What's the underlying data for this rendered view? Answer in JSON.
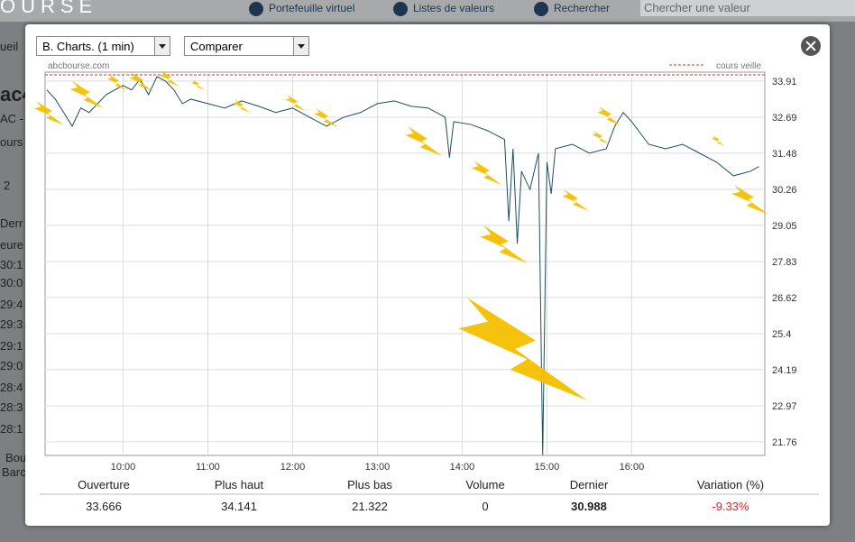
{
  "background": {
    "logo": "OURSE",
    "nav": [
      "Portefeuille virtuel",
      "Listes de valeurs",
      "Rechercher"
    ],
    "search_placeholder": "Chercher une valeur",
    "left_fragments": [
      "ueil",
      "ac4",
      "AC -",
      "ours",
      "2",
      "Derr",
      "eure",
      "30:1",
      "30:0",
      "29:4",
      "29:3",
      "29:1",
      "29:0",
      "28:4",
      "28:3",
      "28:1",
      "Bou",
      "Barc"
    ]
  },
  "modal": {
    "chart_type_select": "B. Charts. (1 min)",
    "compare_select": "Comparer"
  },
  "chart_data": {
    "type": "line",
    "source": "abcbourse.com",
    "reference": {
      "name": "cours veille",
      "value": 34.12,
      "color": "#d03030"
    },
    "xlim": [
      9.08,
      17.57
    ],
    "xticks": [
      {
        "value": 10,
        "label": "10:00"
      },
      {
        "value": 11,
        "label": "11:00"
      },
      {
        "value": 12,
        "label": "12:00"
      },
      {
        "value": 13,
        "label": "13:00"
      },
      {
        "value": 14,
        "label": "14:00"
      },
      {
        "value": 15,
        "label": "15:00"
      },
      {
        "value": 16,
        "label": "16:00"
      }
    ],
    "ylim": [
      21.3,
      34.21
    ],
    "yticks": [
      33.91,
      32.69,
      31.48,
      30.26,
      29.05,
      27.83,
      26.62,
      25.4,
      24.19,
      22.97,
      21.76
    ],
    "grid": true,
    "x": [
      9.1,
      9.2,
      9.3,
      9.4,
      9.5,
      9.6,
      9.7,
      9.8,
      9.9,
      10.0,
      10.1,
      10.2,
      10.3,
      10.4,
      10.5,
      10.6,
      10.7,
      10.8,
      11.0,
      11.2,
      11.4,
      11.6,
      11.8,
      12.0,
      12.2,
      12.4,
      12.6,
      12.8,
      13.0,
      13.2,
      13.4,
      13.6,
      13.8,
      13.85,
      13.9,
      14.1,
      14.3,
      14.5,
      14.55,
      14.6,
      14.65,
      14.7,
      14.8,
      14.9,
      14.95,
      15.0,
      15.05,
      15.1,
      15.3,
      15.5,
      15.7,
      15.8,
      15.9,
      16.0,
      16.2,
      16.4,
      16.6,
      16.8,
      17.0,
      17.2,
      17.4,
      17.5
    ],
    "series": [
      {
        "color": "#1f4e5f",
        "values": [
          33.61,
          33.3,
          32.85,
          32.39,
          33.0,
          32.85,
          33.15,
          33.45,
          33.61,
          33.76,
          33.61,
          33.97,
          33.45,
          34.06,
          33.91,
          33.61,
          33.15,
          33.3,
          33.15,
          33.0,
          33.24,
          33.06,
          32.85,
          33.0,
          32.69,
          32.39,
          32.69,
          32.85,
          33.15,
          33.24,
          33.06,
          33.0,
          32.69,
          31.33,
          32.54,
          32.45,
          32.24,
          31.94,
          29.2,
          31.63,
          28.44,
          30.87,
          30.26,
          31.48,
          21.32,
          31.18,
          30.11,
          31.63,
          31.78,
          31.48,
          31.63,
          32.39,
          32.85,
          32.54,
          31.78,
          31.63,
          31.78,
          31.48,
          31.18,
          30.72,
          30.87,
          31.03
        ]
      }
    ]
  },
  "stats": {
    "headers": [
      "Ouverture",
      "Plus haut",
      "Plus bas",
      "Volume",
      "Dernier",
      "Variation (%)"
    ],
    "values": [
      "33.666",
      "34.141",
      "21.322",
      "0",
      "30.988",
      "-9.33%"
    ]
  }
}
